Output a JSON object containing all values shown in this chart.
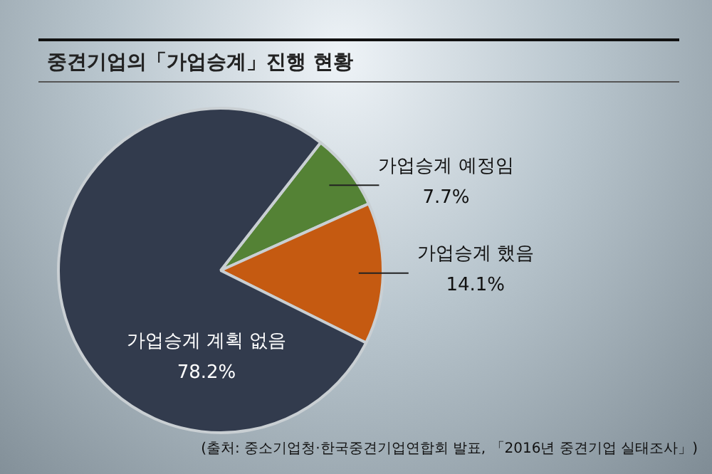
{
  "chart_data": {
    "type": "pie",
    "title": "중견기업의「가업승계」진행 현황",
    "categories": [
      "가업승계 예정임",
      "가업승계 했음",
      "가업승계 계획 없음"
    ],
    "values": [
      7.7,
      14.1,
      78.2
    ],
    "colors": [
      "#548235",
      "#c55a11",
      "#323b4d"
    ],
    "value_labels": [
      "7.7%",
      "14.1%",
      "78.2%"
    ],
    "legend": false,
    "annotations": [
      "(출처: 중소기업청·한국중견기업연합회 발표, 「2016년 중견기업 실태조사」)"
    ]
  }
}
